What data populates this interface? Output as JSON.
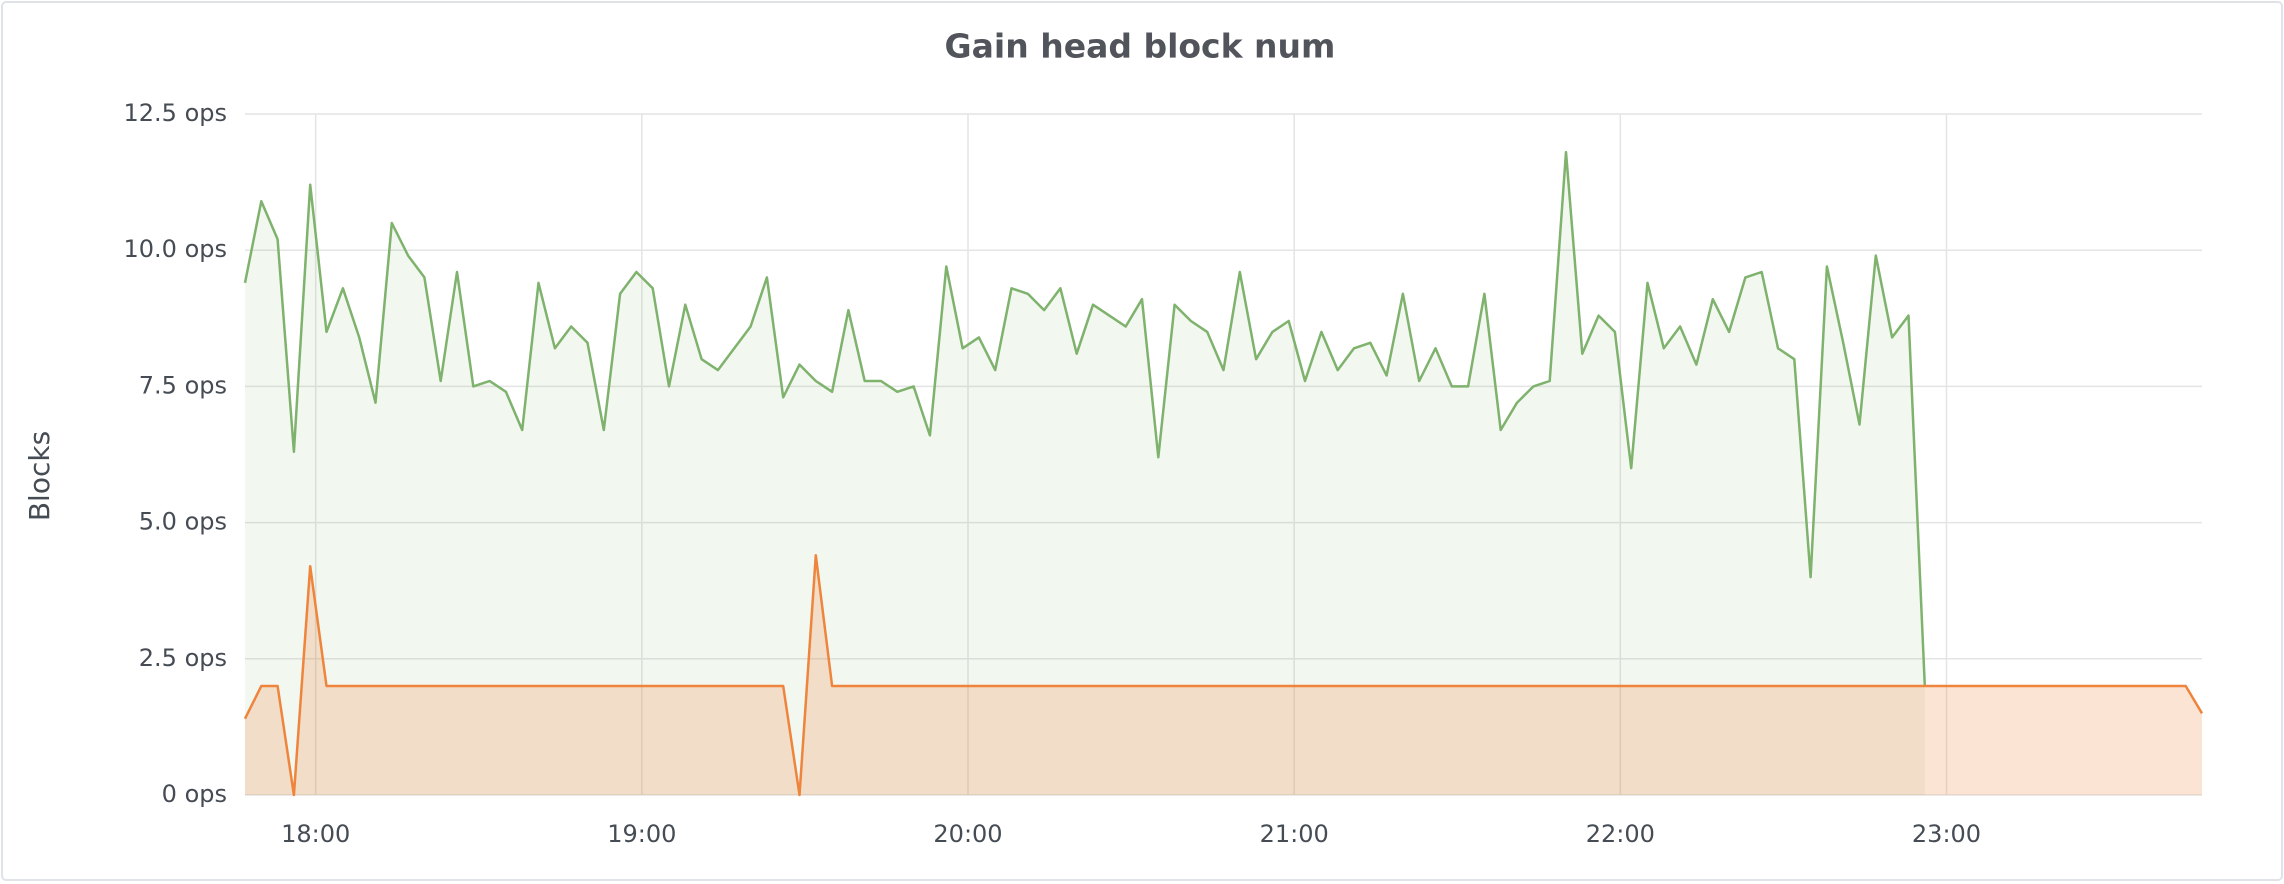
{
  "chart_data": {
    "type": "line",
    "title": "Gain head block num",
    "ylabel": "Blocks",
    "x": [
      "17:47",
      "17:50",
      "17:53",
      "17:56",
      "17:59",
      "18:02",
      "18:05",
      "18:08",
      "18:11",
      "18:14",
      "18:17",
      "18:20",
      "18:23",
      "18:26",
      "18:29",
      "18:32",
      "18:35",
      "18:38",
      "18:41",
      "18:44",
      "18:47",
      "18:50",
      "18:53",
      "18:56",
      "18:59",
      "19:02",
      "19:05",
      "19:08",
      "19:11",
      "19:14",
      "19:17",
      "19:20",
      "19:23",
      "19:26",
      "19:29",
      "19:32",
      "19:35",
      "19:38",
      "19:41",
      "19:44",
      "19:47",
      "19:50",
      "19:53",
      "19:56",
      "19:59",
      "20:02",
      "20:05",
      "20:08",
      "20:11",
      "20:14",
      "20:17",
      "20:20",
      "20:23",
      "20:26",
      "20:29",
      "20:32",
      "20:35",
      "20:38",
      "20:41",
      "20:44",
      "20:47",
      "20:50",
      "20:53",
      "20:56",
      "20:59",
      "21:02",
      "21:05",
      "21:08",
      "21:11",
      "21:14",
      "21:17",
      "21:20",
      "21:23",
      "21:26",
      "21:29",
      "21:32",
      "21:35",
      "21:38",
      "21:41",
      "21:44",
      "21:47",
      "21:50",
      "21:53",
      "21:56",
      "21:59",
      "22:02",
      "22:05",
      "22:08",
      "22:11",
      "22:14",
      "22:17",
      "22:20",
      "22:23",
      "22:26",
      "22:29",
      "22:32",
      "22:35",
      "22:38",
      "22:41",
      "22:44",
      "22:47",
      "22:50",
      "22:53",
      "22:56",
      "22:59",
      "23:02",
      "23:05",
      "23:08",
      "23:11",
      "23:14",
      "23:17",
      "23:20",
      "23:23",
      "23:26",
      "23:29",
      "23:32",
      "23:35",
      "23:38",
      "23:41",
      "23:44",
      "23:47"
    ],
    "series": [
      {
        "color": "#7eb26d",
        "values": [
          9.4,
          10.9,
          10.2,
          6.3,
          11.2,
          8.5,
          9.3,
          8.4,
          7.2,
          10.5,
          9.9,
          9.5,
          7.6,
          9.6,
          7.5,
          7.6,
          7.4,
          6.7,
          9.4,
          8.2,
          8.6,
          8.3,
          6.7,
          9.2,
          9.6,
          9.3,
          7.5,
          9.0,
          8.0,
          7.8,
          8.2,
          8.6,
          9.5,
          7.3,
          7.9,
          7.6,
          7.4,
          8.9,
          7.6,
          7.6,
          7.4,
          7.5,
          6.6,
          9.7,
          8.2,
          8.4,
          7.8,
          9.3,
          9.2,
          8.9,
          9.3,
          8.1,
          9.0,
          8.8,
          8.6,
          9.1,
          6.2,
          9.0,
          8.7,
          8.5,
          7.8,
          9.6,
          8.0,
          8.5,
          8.7,
          7.6,
          8.5,
          7.8,
          8.2,
          8.3,
          7.7,
          9.2,
          7.6,
          8.2,
          7.5,
          7.5,
          9.2,
          6.7,
          7.2,
          7.5,
          7.6,
          11.8,
          8.1,
          8.8,
          8.5,
          6.0,
          9.4,
          8.2,
          8.6,
          7.9,
          9.1,
          8.5,
          9.5,
          9.6,
          8.2,
          8.0,
          4.0,
          9.7,
          8.3,
          6.8,
          9.9,
          8.4,
          8.8,
          2.0,
          null,
          null,
          null,
          null,
          null,
          null,
          null,
          null,
          null,
          null,
          null,
          null,
          null,
          null,
          null,
          null,
          null
        ]
      },
      {
        "color": "#ef843c",
        "values": [
          1.4,
          2.0,
          2.0,
          0.0,
          4.2,
          2.0,
          2.0,
          2.0,
          2.0,
          2.0,
          2.0,
          2.0,
          2.0,
          2.0,
          2.0,
          2.0,
          2.0,
          2.0,
          2.0,
          2.0,
          2.0,
          2.0,
          2.0,
          2.0,
          2.0,
          2.0,
          2.0,
          2.0,
          2.0,
          2.0,
          2.0,
          2.0,
          2.0,
          2.0,
          0.0,
          4.4,
          2.0,
          2.0,
          2.0,
          2.0,
          2.0,
          2.0,
          2.0,
          2.0,
          2.0,
          2.0,
          2.0,
          2.0,
          2.0,
          2.0,
          2.0,
          2.0,
          2.0,
          2.0,
          2.0,
          2.0,
          2.0,
          2.0,
          2.0,
          2.0,
          2.0,
          2.0,
          2.0,
          2.0,
          2.0,
          2.0,
          2.0,
          2.0,
          2.0,
          2.0,
          2.0,
          2.0,
          2.0,
          2.0,
          2.0,
          2.0,
          2.0,
          2.0,
          2.0,
          2.0,
          2.0,
          2.0,
          2.0,
          2.0,
          2.0,
          2.0,
          2.0,
          2.0,
          2.0,
          2.0,
          2.0,
          2.0,
          2.0,
          2.0,
          2.0,
          2.0,
          2.0,
          2.0,
          2.0,
          2.0,
          2.0,
          2.0,
          2.0,
          2.0,
          2.0,
          2.0,
          2.0,
          2.0,
          2.0,
          2.0,
          2.0,
          2.0,
          2.0,
          2.0,
          2.0,
          2.0,
          2.0,
          2.0,
          2.0,
          2.0,
          1.5
        ]
      }
    ],
    "xlim": [
      "17:47",
      "23:47"
    ],
    "xticks": [
      "18:00",
      "19:00",
      "20:00",
      "21:00",
      "22:00",
      "23:00"
    ],
    "ylim": [
      0,
      12.5
    ],
    "yticks": [
      {
        "value": 0,
        "label": "0 ops"
      },
      {
        "value": 2.5,
        "label": "2.5 ops"
      },
      {
        "value": 5,
        "label": "5.0 ops"
      },
      {
        "value": 7.5,
        "label": "7.5 ops"
      },
      {
        "value": 10,
        "label": "10.0 ops"
      },
      {
        "value": 12.5,
        "label": "12.5 ops"
      }
    ],
    "grid": true,
    "fill": true
  }
}
